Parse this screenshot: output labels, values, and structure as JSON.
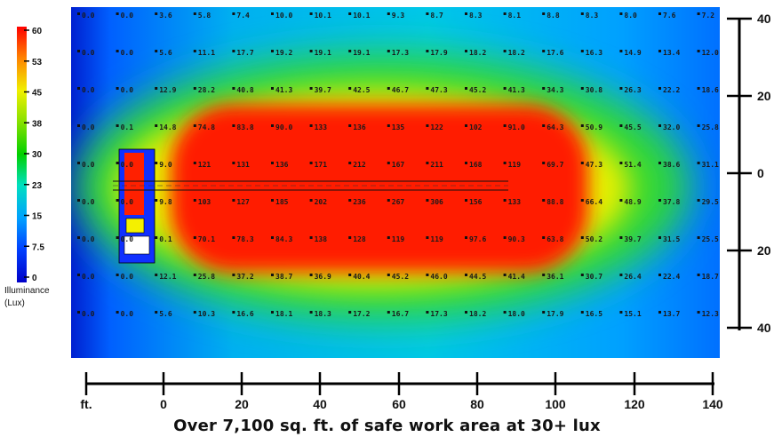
{
  "chart_data": {
    "type": "heatmap",
    "title": "",
    "caption": "Over 7,100 sq. ft. of safe work area at 30+ lux",
    "xlabel": "ft.",
    "ylabel": "",
    "x_ticks": [
      "ft.",
      "0",
      "20",
      "40",
      "60",
      "80",
      "100",
      "120",
      "140"
    ],
    "y_ticks": [
      "40",
      "20",
      "0",
      "20",
      "40"
    ],
    "xlim": [
      -20,
      140
    ],
    "ylim": [
      -40,
      40
    ],
    "colorbar": {
      "label_line1": "Illuminance",
      "label_line2": "(Lux)",
      "ticks": [
        "60",
        "53",
        "45",
        "38",
        "30",
        "23",
        "15",
        "7.5",
        "0"
      ],
      "range": [
        0,
        60
      ]
    },
    "grid_rows": [
      [
        "0.0",
        "0.0",
        "3.6",
        "5.8",
        "7.4",
        "10.0",
        "10.1",
        "10.1",
        "9.3",
        "8.7",
        "8.3",
        "8.1",
        "8.8",
        "8.3",
        "8.0",
        "7.6",
        "7.2"
      ],
      [
        "0.0",
        "0.0",
        "5.6",
        "11.1",
        "17.7",
        "19.2",
        "19.1",
        "19.1",
        "17.3",
        "17.9",
        "18.2",
        "18.2",
        "17.6",
        "16.3",
        "14.9",
        "13.4",
        "12.0"
      ],
      [
        "0.0",
        "0.0",
        "12.9",
        "28.2",
        "40.8",
        "41.3",
        "39.7",
        "42.5",
        "46.7",
        "47.3",
        "45.2",
        "41.3",
        "34.3",
        "30.8",
        "26.3",
        "22.2",
        "18.6"
      ],
      [
        "0.0",
        "0.1",
        "14.8",
        "74.8",
        "83.8",
        "90.0",
        "133",
        "136",
        "135",
        "122",
        "102",
        "91.0",
        "64.3",
        "50.9",
        "45.5",
        "32.0",
        "25.8"
      ],
      [
        "0.0",
        "0.0",
        "9.0",
        "121",
        "131",
        "136",
        "171",
        "212",
        "167",
        "211",
        "168",
        "119",
        "69.7",
        "47.3",
        "51.4",
        "38.6",
        "31.1"
      ],
      [
        "0.0",
        "0.0",
        "9.8",
        "103",
        "127",
        "185",
        "202",
        "236",
        "267",
        "306",
        "156",
        "133",
        "88.8",
        "66.4",
        "48.9",
        "37.8",
        "29.5"
      ],
      [
        "0.0",
        "0.0",
        "0.1",
        "70.1",
        "78.3",
        "84.3",
        "138",
        "128",
        "119",
        "119",
        "97.6",
        "90.3",
        "63.8",
        "50.2",
        "39.7",
        "31.5",
        "25.5"
      ],
      [
        "0.0",
        "0.0",
        "12.1",
        "25.8",
        "37.2",
        "38.7",
        "36.9",
        "40.4",
        "45.2",
        "46.0",
        "44.5",
        "41.4",
        "36.1",
        "30.7",
        "26.4",
        "22.4",
        "18.7"
      ],
      [
        "0.0",
        "0.0",
        "5.6",
        "10.3",
        "16.6",
        "18.1",
        "18.3",
        "17.2",
        "16.7",
        "17.3",
        "18.2",
        "18.0",
        "17.9",
        "16.5",
        "15.1",
        "13.7",
        "12.3"
      ]
    ]
  }
}
